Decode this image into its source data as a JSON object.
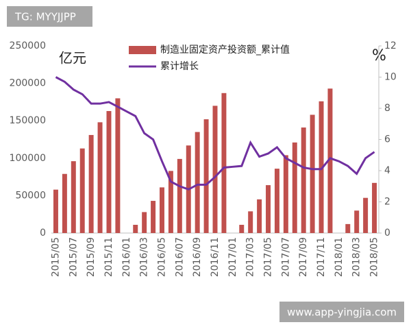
{
  "watermarks": {
    "top_left": "TG: MYYJJPP",
    "bottom_right": "www.app-yingjia.com"
  },
  "chart_data": {
    "type": "bar_line",
    "ylabel": "亿元",
    "y2label": "%",
    "categories": [
      "2015/05",
      null,
      "2015/07",
      null,
      "2015/09",
      null,
      "2015/11",
      null,
      "2016/01",
      null,
      "2016/03",
      null,
      "2016/05",
      null,
      "2016/07",
      null,
      "2016/09",
      null,
      "2016/11",
      null,
      "2017/01",
      null,
      "2017/03",
      null,
      "2017/05",
      null,
      "2017/07",
      null,
      "2017/09",
      null,
      "2017/11",
      null,
      "2018/01",
      null,
      "2018/03",
      null,
      "2018/05"
    ],
    "series": [
      {
        "name": "制造业固定资产投资额_累计值",
        "type": "bar",
        "color": "#c0504d",
        "values": [
          58000,
          79000,
          96000,
          113000,
          131000,
          148000,
          163000,
          180000,
          null,
          11000,
          28000,
          43000,
          61000,
          83000,
          99000,
          117000,
          135000,
          152000,
          170000,
          187000,
          null,
          11000,
          29000,
          45000,
          64000,
          86000,
          104000,
          121000,
          141000,
          158000,
          176000,
          193000,
          null,
          12000,
          30000,
          47000,
          67000
        ]
      },
      {
        "name": "累计增长",
        "type": "line",
        "axis": "y2",
        "color": "#7030a0",
        "values": [
          10.0,
          9.7,
          9.2,
          8.9,
          8.3,
          8.3,
          8.4,
          8.1,
          7.8,
          7.5,
          6.4,
          6.0,
          4.6,
          3.3,
          3.0,
          2.8,
          3.1,
          3.1,
          3.6,
          4.2,
          4.25,
          4.3,
          5.8,
          4.9,
          5.1,
          5.5,
          4.8,
          4.5,
          4.2,
          4.1,
          4.1,
          4.8,
          4.6,
          4.3,
          3.8,
          4.8,
          5.2
        ]
      }
    ],
    "ylim": [
      0,
      250000
    ],
    "yticks": [
      0,
      50000,
      100000,
      150000,
      200000,
      250000
    ],
    "y2lim": [
      0,
      12
    ],
    "y2ticks": [
      0,
      2,
      4,
      6,
      8,
      10,
      12
    ]
  }
}
